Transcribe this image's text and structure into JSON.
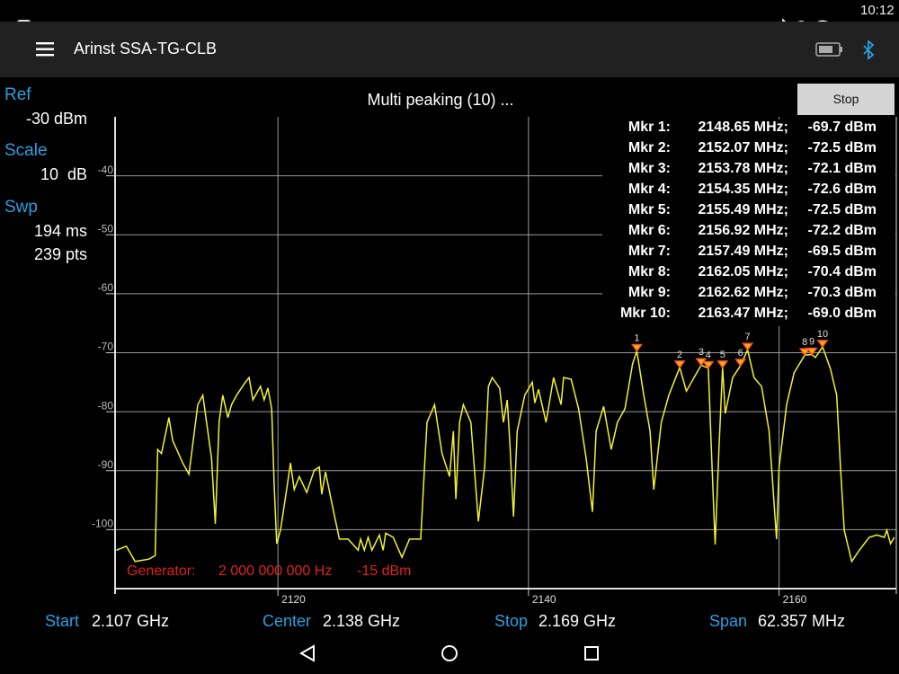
{
  "status_bar": {
    "time": "10:12"
  },
  "app_bar": {
    "title": "Arinst SSA-TG-CLB"
  },
  "settings": {
    "ref_label": "Ref",
    "ref_value": "-30 dBm",
    "scale_label": "Scale",
    "scale_value": "10  dB",
    "swp_label": "Swp",
    "swp_time": "194 ms",
    "swp_points": "239 pts"
  },
  "status_text": "Multi peaking (10) ...",
  "stop_button": "Stop",
  "generator": {
    "label": "Generator:",
    "frequency": "2 000 000 000 Hz",
    "level": "-15 dBm"
  },
  "footer": {
    "start_label": "Start",
    "start_value": "2.107 GHz",
    "center_label": "Center",
    "center_value": "2.138 GHz",
    "stop_label": "Stop",
    "stop_value": "2.169 GHz",
    "span_label": "Span",
    "span_value": "62.357 MHz"
  },
  "chart_data": {
    "type": "line",
    "color": "#f2f230",
    "marker_color": "#ff5a1a",
    "grid": true,
    "xlim": [
      2107,
      2169.357
    ],
    "ylim": [
      -110,
      -30
    ],
    "xticks": [
      2120,
      2140,
      2160
    ],
    "yticks": [
      -40,
      -50,
      -60,
      -70,
      -80,
      -90,
      -100
    ],
    "x": [
      2107.1,
      2107.9,
      2108.6,
      2109.7,
      2110.2,
      2110.4,
      2110.7,
      2111.3,
      2111.6,
      2112.4,
      2112.9,
      2113.6,
      2114.0,
      2114.7,
      2115.0,
      2115.3,
      2115.6,
      2116.0,
      2116.3,
      2116.7,
      2117.4,
      2117.7,
      2118.0,
      2118.6,
      2118.9,
      2119.2,
      2119.5,
      2119.7,
      2119.9,
      2120.2,
      2120.8,
      2121.0,
      2121.3,
      2121.7,
      2122.3,
      2122.9,
      2123.3,
      2123.5,
      2123.8,
      2124.3,
      2124.9,
      2125.6,
      2126.4,
      2126.6,
      2126.9,
      2127.2,
      2127.5,
      2128.1,
      2128.4,
      2128.6,
      2129.2,
      2129.9,
      2130.5,
      2131.4,
      2131.7,
      2131.9,
      2132.5,
      2133.1,
      2133.7,
      2134.0,
      2134.2,
      2134.5,
      2134.8,
      2135.4,
      2136.0,
      2136.5,
      2136.8,
      2137.1,
      2137.7,
      2138.0,
      2138.3,
      2138.5,
      2138.8,
      2139.1,
      2139.7,
      2140.3,
      2140.5,
      2140.8,
      2141.4,
      2142.0,
      2142.6,
      2142.8,
      2143.4,
      2144.0,
      2144.6,
      2145.1,
      2145.4,
      2146.0,
      2146.6,
      2147.1,
      2147.7,
      2148.3,
      2148.65,
      2149.2,
      2149.7,
      2150.0,
      2150.6,
      2151.2,
      2152.07,
      2152.6,
      2153.78,
      2154.35,
      2154.6,
      2154.9,
      2155.2,
      2155.49,
      2155.7,
      2156.3,
      2156.92,
      2157.49,
      2158.0,
      2158.6,
      2159.2,
      2159.8,
      2160.0,
      2160.6,
      2161.2,
      2162.05,
      2162.62,
      2162.9,
      2163.47,
      2164.1,
      2164.6,
      2164.9,
      2165.2,
      2165.8,
      2166.4,
      2167.2,
      2167.8,
      2168.4,
      2168.6,
      2168.9,
      2169.2
    ],
    "values": [
      -103.5,
      -102.8,
      -105.4,
      -105.0,
      -104.4,
      -86.4,
      -87.1,
      -81.0,
      -84.9,
      -88.7,
      -90.6,
      -78.8,
      -77.2,
      -87.9,
      -99.0,
      -81.8,
      -77.2,
      -81.0,
      -78.8,
      -77.2,
      -75.0,
      -74.2,
      -78.0,
      -75.7,
      -78.0,
      -76.0,
      -79.5,
      -92.5,
      -102.4,
      -100.1,
      -91.7,
      -88.7,
      -93.2,
      -91.0,
      -93.7,
      -89.9,
      -89.4,
      -94.0,
      -90.2,
      -95.5,
      -101.6,
      -101.6,
      -103.5,
      -101.6,
      -103.5,
      -101.3,
      -103.5,
      -100.9,
      -103.5,
      -100.6,
      -101.3,
      -104.7,
      -101.6,
      -101.6,
      -89.4,
      -81.8,
      -78.8,
      -87.1,
      -91.0,
      -83.3,
      -94.8,
      -81.8,
      -78.8,
      -81.8,
      -98.6,
      -89.4,
      -75.7,
      -74.2,
      -76.0,
      -81.8,
      -78.0,
      -84.9,
      -97.8,
      -83.3,
      -77.2,
      -75.0,
      -78.5,
      -76.2,
      -81.8,
      -74.2,
      -78.8,
      -74.2,
      -74.5,
      -79.5,
      -87.9,
      -97.0,
      -83.3,
      -79.1,
      -86.4,
      -81.8,
      -79.5,
      -71.9,
      -69.7,
      -77.2,
      -83.3,
      -93.2,
      -81.8,
      -77.2,
      -72.5,
      -76.5,
      -72.1,
      -72.6,
      -86.4,
      -102.5,
      -86.4,
      -72.5,
      -80.3,
      -74.2,
      -72.2,
      -69.5,
      -74.2,
      -75.7,
      -83.3,
      -101.6,
      -89.4,
      -78.8,
      -73.4,
      -70.4,
      -70.3,
      -70.8,
      -69.0,
      -72.7,
      -77.2,
      -89.4,
      -100.1,
      -105.4,
      -103.5,
      -101.3,
      -100.9,
      -101.3,
      -100.1,
      -102.4,
      -101.3
    ],
    "markers": [
      {
        "name": "1",
        "table_label": "Mkr 1:",
        "x": 2148.65,
        "x_label": "2148.65 MHz;",
        "y": -69.7,
        "y_label": "-69.7 dBm"
      },
      {
        "name": "2",
        "table_label": "Mkr 2:",
        "x": 2152.07,
        "x_label": "2152.07 MHz;",
        "y": -72.5,
        "y_label": "-72.5 dBm"
      },
      {
        "name": "3",
        "table_label": "Mkr 3:",
        "x": 2153.78,
        "x_label": "2153.78 MHz;",
        "y": -72.1,
        "y_label": "-72.1 dBm"
      },
      {
        "name": "4",
        "table_label": "Mkr 4:",
        "x": 2154.35,
        "x_label": "2154.35 MHz;",
        "y": -72.6,
        "y_label": "-72.6 dBm"
      },
      {
        "name": "5",
        "table_label": "Mkr 5:",
        "x": 2155.49,
        "x_label": "2155.49 MHz;",
        "y": -72.5,
        "y_label": "-72.5 dBm"
      },
      {
        "name": "6",
        "table_label": "Mkr 6:",
        "x": 2156.92,
        "x_label": "2156.92 MHz;",
        "y": -72.2,
        "y_label": "-72.2 dBm"
      },
      {
        "name": "7",
        "table_label": "Mkr 7:",
        "x": 2157.49,
        "x_label": "2157.49 MHz;",
        "y": -69.5,
        "y_label": "-69.5 dBm"
      },
      {
        "name": "8",
        "table_label": "Mkr 8:",
        "x": 2162.05,
        "x_label": "2162.05 MHz;",
        "y": -70.4,
        "y_label": "-70.4 dBm"
      },
      {
        "name": "9",
        "table_label": "Mkr 9:",
        "x": 2162.62,
        "x_label": "2162.62 MHz;",
        "y": -70.3,
        "y_label": "-70.3 dBm"
      },
      {
        "name": "10",
        "table_label": "Mkr 10:",
        "x": 2163.47,
        "x_label": "2163.47 MHz;",
        "y": -69.0,
        "y_label": "-69.0 dBm"
      }
    ]
  }
}
